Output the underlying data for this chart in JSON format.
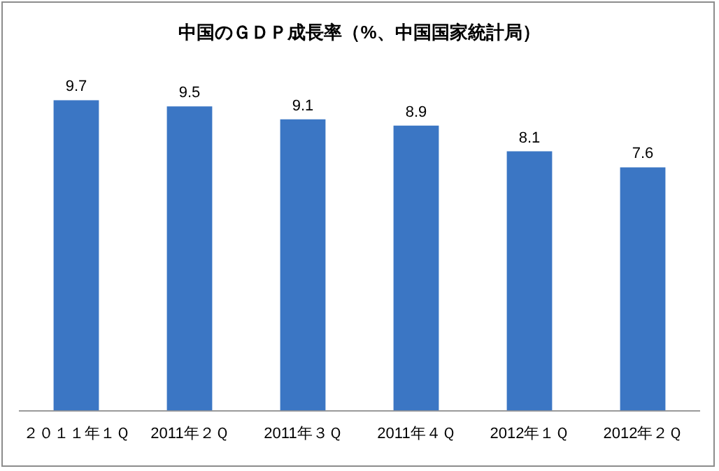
{
  "chart_data": {
    "type": "bar",
    "title": "中国のＧＤＰ成長率（%、中国国家統計局）",
    "categories": [
      "２０１１年１Ｑ",
      "2011年２Ｑ",
      "2011年３Ｑ",
      "2011年４Ｑ",
      "2012年１Ｑ",
      "2012年２Ｑ"
    ],
    "values": [
      9.7,
      9.5,
      9.1,
      8.9,
      8.1,
      7.6
    ],
    "color": "#3b76c4",
    "data_labels": true,
    "grid": false,
    "legend": false
  }
}
